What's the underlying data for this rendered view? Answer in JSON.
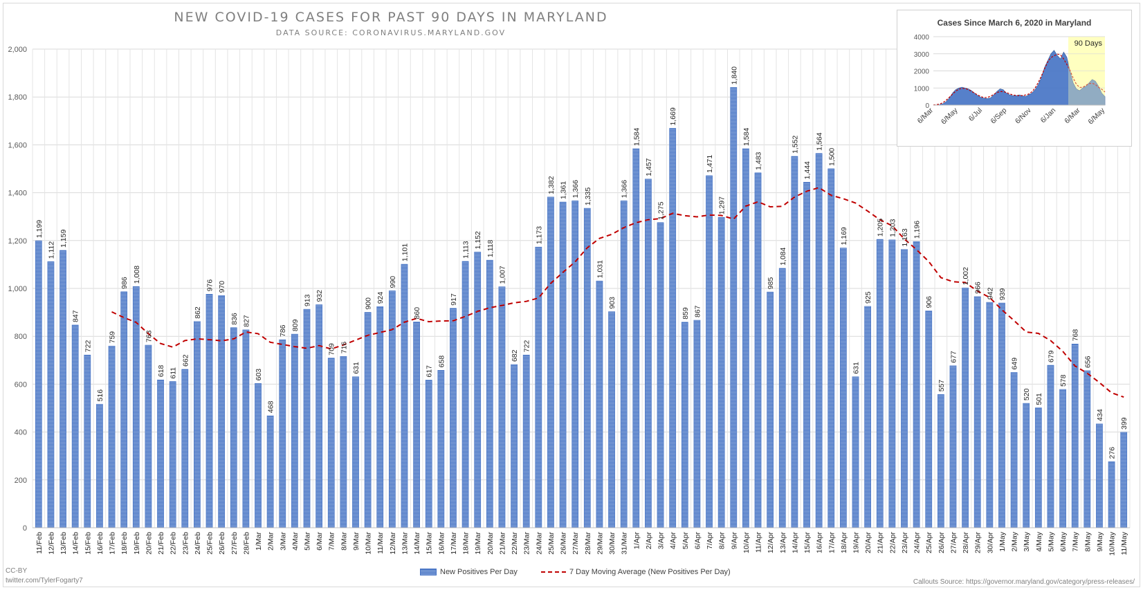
{
  "chart_data": [
    {
      "type": "bar",
      "title": "NEW COVID-19 CASES FOR PAST 90 DAYS IN MARYLAND",
      "subtitle": "DATA SOURCE: CORONAVIRUS.MARYLAND.GOV",
      "categories": [
        "11/Feb",
        "12/Feb",
        "13/Feb",
        "14/Feb",
        "15/Feb",
        "16/Feb",
        "17/Feb",
        "18/Feb",
        "19/Feb",
        "20/Feb",
        "21/Feb",
        "22/Feb",
        "23/Feb",
        "24/Feb",
        "25/Feb",
        "26/Feb",
        "27/Feb",
        "28/Feb",
        "1/Mar",
        "2/Mar",
        "3/Mar",
        "4/Mar",
        "5/Mar",
        "6/Mar",
        "7/Mar",
        "8/Mar",
        "9/Mar",
        "10/Mar",
        "11/Mar",
        "12/Mar",
        "13/Mar",
        "14/Mar",
        "15/Mar",
        "16/Mar",
        "17/Mar",
        "18/Mar",
        "19/Mar",
        "20/Mar",
        "21/Mar",
        "22/Mar",
        "23/Mar",
        "24/Mar",
        "25/Mar",
        "26/Mar",
        "27/Mar",
        "28/Mar",
        "29/Mar",
        "30/Mar",
        "31/Mar",
        "1/Apr",
        "2/Apr",
        "3/Apr",
        "4/Apr",
        "5/Apr",
        "6/Apr",
        "7/Apr",
        "8/Apr",
        "9/Apr",
        "10/Apr",
        "11/Apr",
        "12/Apr",
        "13/Apr",
        "14/Apr",
        "15/Apr",
        "16/Apr",
        "17/Apr",
        "18/Apr",
        "19/Apr",
        "20/Apr",
        "21/Apr",
        "22/Apr",
        "23/Apr",
        "24/Apr",
        "25/Apr",
        "26/Apr",
        "27/Apr",
        "28/Apr",
        "29/Apr",
        "30/Apr",
        "1/May",
        "2/May",
        "3/May",
        "4/May",
        "5/May",
        "6/May",
        "7/May",
        "8/May",
        "9/May",
        "10/May",
        "11/May"
      ],
      "series": [
        {
          "name": "New Positives Per Day",
          "type": "bar",
          "color": "#4472c4",
          "values": [
            1199,
            1112,
            1159,
            847,
            722,
            516,
            759,
            986,
            1008,
            763,
            618,
            611,
            662,
            862,
            976,
            970,
            836,
            827,
            603,
            468,
            786,
            809,
            913,
            932,
            709,
            716,
            631,
            900,
            924,
            990,
            1101,
            860,
            617,
            658,
            917,
            1113,
            1152,
            1118,
            1007,
            682,
            722,
            1173,
            1382,
            1361,
            1366,
            1335,
            1031,
            903,
            1366,
            1584,
            1457,
            1275,
            1669,
            859,
            867,
            1471,
            1297,
            1840,
            1584,
            1483,
            985,
            1084,
            1552,
            1444,
            1564,
            1500,
            1169,
            631,
            925,
            1205,
            1203,
            1163,
            1196,
            906,
            557,
            677,
            1002,
            966,
            942,
            939,
            649,
            520,
            501,
            679,
            578,
            768,
            656,
            434,
            276,
            399
          ]
        },
        {
          "name": "7 Day Moving Average (New Positives Per Day)",
          "type": "line",
          "style": "dashed",
          "color": "#c00000",
          "values": [
            null,
            null,
            null,
            null,
            null,
            null,
            902,
            878,
            858,
            811,
            770,
            755,
            782,
            789,
            786,
            781,
            789,
            818,
            811,
            775,
            766,
            757,
            750,
            761,
            747,
            764,
            784,
            804,
            816,
            828,
            859,
            875,
            861,
            864,
            865,
            883,
            904,
            919,
            929,
            940,
            946,
            960,
            1021,
            1067,
            1111,
            1170,
            1209,
            1226,
            1254,
            1275,
            1287,
            1292,
            1314,
            1304,
            1299,
            1307,
            1305,
            1290,
            1344,
            1362,
            1341,
            1343,
            1382,
            1406,
            1421,
            1389,
            1375,
            1357,
            1323,
            1287,
            1262,
            1207,
            1162,
            1113,
            1045,
            1028,
            1025,
            989,
            962,
            911,
            866,
            818,
            812,
            782,
            737,
            676,
            646,
            607,
            564,
            546
          ],
          "labels": false
        }
      ],
      "xlabel": "",
      "ylabel": "",
      "ylim": [
        0,
        2000
      ],
      "yticks": [
        "0",
        "200",
        "400",
        "600",
        "800",
        "1,000",
        "1,200",
        "1,400",
        "1,600",
        "1,800",
        "2,000"
      ],
      "grid": true,
      "legend": "bottom"
    },
    {
      "type": "area",
      "title": "Cases Since March 6, 2020 in Maryland",
      "x_tick_labels": [
        "6/Mar",
        "6/May",
        "6/Jul",
        "6/Sep",
        "6/Nov",
        "6/Jan",
        "6/Mar",
        "6/May"
      ],
      "yticks": [
        "0",
        "1000",
        "2000",
        "3000",
        "4000"
      ],
      "ylim": [
        0,
        4000
      ],
      "annotation": "90 Days",
      "highlight_color": "#ffffc0",
      "series": [
        {
          "name": "",
          "color": "#4472c4",
          "values": [
            0,
            5,
            30,
            80,
            200,
            400,
            700,
            900,
            1000,
            1050,
            1000,
            950,
            850,
            700,
            550,
            450,
            400,
            380,
            420,
            600,
            800,
            950,
            900,
            700,
            600,
            550,
            550,
            600,
            550,
            500,
            600,
            700,
            900,
            1200,
            1600,
            2200,
            2600,
            3000,
            3200,
            2900,
            2700,
            3100,
            2800,
            2000,
            1300,
            950,
            850,
            1000,
            1100,
            1300,
            1500,
            1400,
            1100,
            700,
            500
          ]
        }
      ]
    }
  ],
  "legend": {
    "bar_label": "New Positives Per Day",
    "line_label": "7 Day Moving Average (New Positives Per Day)"
  },
  "footer": {
    "license": "CC-BY",
    "handle": "twitter.com/TylerFogarty7",
    "callouts": "Callouts Source: https://governor.maryland.gov/category/press-releases/"
  }
}
